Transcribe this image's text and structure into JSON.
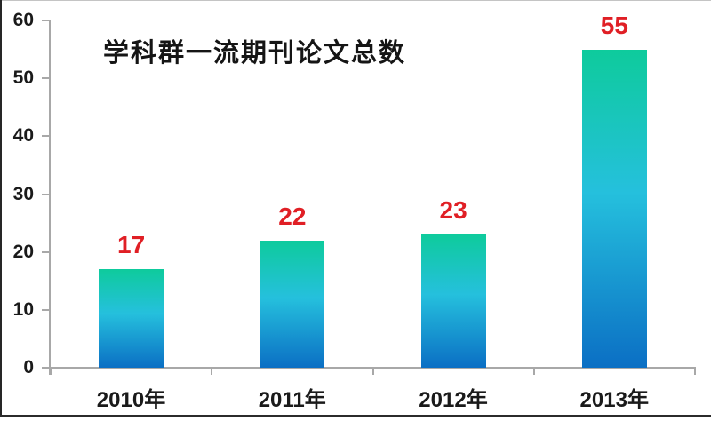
{
  "chart_data": {
    "type": "bar",
    "title": "学科群一流期刊论文总数",
    "categories": [
      "2010年",
      "2011年",
      "2012年",
      "2013年"
    ],
    "values": [
      17,
      22,
      23,
      55
    ],
    "xlabel": "",
    "ylabel": "",
    "ylim": [
      0,
      60
    ],
    "yticks": [
      0,
      10,
      20,
      30,
      40,
      50,
      60
    ],
    "grid": false,
    "legend_position": "none",
    "value_label_color": "#e01f25",
    "bar_gradient_top": "#0ecb9c",
    "bar_gradient_mid": "#25c0dd",
    "bar_gradient_bottom": "#0b6fc4",
    "axis_color": "#a8a8a8",
    "text_color": "#1a1a1a"
  }
}
